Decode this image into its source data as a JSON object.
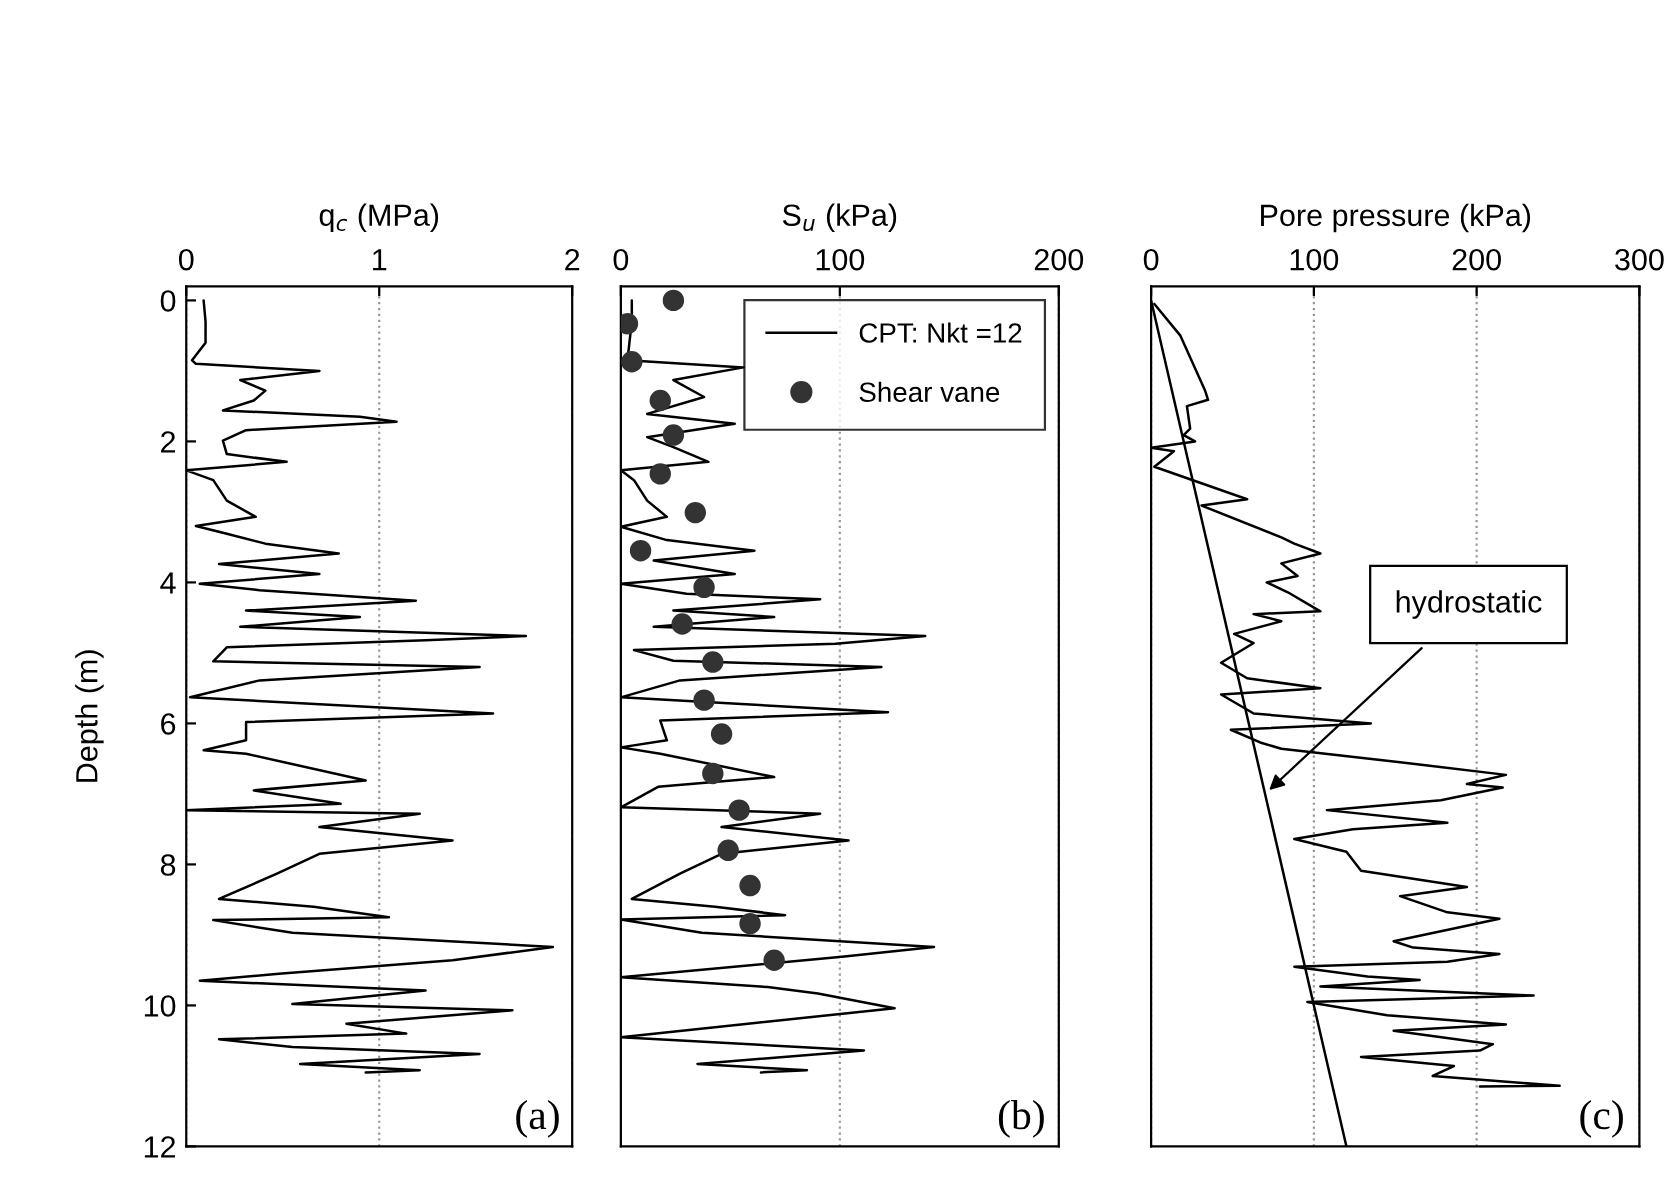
{
  "chart_data": [
    {
      "type": "line",
      "orientation": "horizontal",
      "xlabel": "q$_{c}$ (MPa)",
      "ylabel": "Depth (m)",
      "xlim": [
        0,
        2
      ],
      "xticks": [
        0,
        1,
        2
      ],
      "ylim": [
        12,
        -0.2
      ],
      "yticks": [
        0,
        2,
        4,
        6,
        8,
        10,
        12
      ],
      "grid": "x",
      "legend": false,
      "annotations": [
        "(a)"
      ],
      "series": [
        {
          "color": "#000000",
          "x": [
            0.0,
            0.3,
            0.6,
            0.85,
            0.9,
            1.0,
            1.13,
            1.28,
            1.42,
            1.56,
            1.65,
            1.72,
            1.84,
            1.99,
            2.18,
            2.29,
            2.41,
            2.55,
            2.84,
            3.07,
            3.2,
            3.31,
            3.45,
            3.59,
            3.74,
            3.88,
            4.02,
            4.11,
            4.26,
            4.4,
            4.49,
            4.63,
            4.76,
            4.82,
            4.92,
            5.12,
            5.2,
            5.39,
            5.63,
            5.86,
            5.98,
            6.24,
            6.38,
            6.43,
            6.81,
            6.95,
            7.14,
            7.23,
            7.28,
            7.47,
            7.66,
            7.85,
            8.13,
            8.49,
            8.6,
            8.75,
            8.79,
            8.97,
            9.17,
            9.36,
            9.55,
            9.65,
            9.79,
            9.98,
            10.07,
            10.26,
            10.4,
            10.48,
            10.59,
            10.69,
            10.83,
            10.92,
            10.95
          ],
          "values": [
            0.09,
            0.1,
            0.1,
            0.03,
            0.05,
            0.69,
            0.28,
            0.41,
            0.35,
            0.19,
            0.9,
            1.09,
            0.31,
            0.19,
            0.21,
            0.52,
            0.0,
            0.14,
            0.21,
            0.36,
            0.05,
            0.21,
            0.41,
            0.79,
            0.17,
            0.69,
            0.07,
            0.38,
            1.19,
            0.31,
            0.9,
            0.28,
            1.76,
            1.24,
            0.21,
            0.14,
            1.52,
            0.38,
            0.02,
            1.59,
            0.31,
            0.31,
            0.09,
            0.31,
            0.93,
            0.35,
            0.8,
            0.0,
            1.21,
            0.69,
            1.38,
            0.69,
            0.47,
            0.17,
            0.66,
            1.05,
            0.14,
            0.55,
            1.9,
            1.38,
            0.48,
            0.07,
            1.24,
            0.55,
            1.69,
            0.83,
            1.14,
            0.17,
            0.55,
            1.52,
            0.59,
            1.21,
            0.93
          ]
        }
      ]
    },
    {
      "type": "line",
      "orientation": "horizontal",
      "xlabel": "S$_{u}$ (kPa)",
      "xlim": [
        0,
        200
      ],
      "xticks": [
        0,
        100,
        200
      ],
      "ylim": [
        12,
        -0.2
      ],
      "tick_labels": "x",
      "grid": "x",
      "legend": "top right",
      "annotations": [
        "(b)"
      ],
      "series": [
        {
          "name": "CPT: Nkt =12",
          "color": "#000000",
          "x": [
            0.0,
            0.3,
            0.85,
            0.95,
            1.13,
            1.37,
            1.61,
            1.75,
            1.94,
            2.08,
            2.29,
            2.41,
            2.55,
            2.84,
            3.07,
            3.21,
            3.4,
            3.55,
            3.69,
            3.88,
            4.02,
            4.16,
            4.24,
            4.4,
            4.49,
            4.63,
            4.76,
            4.87,
            4.96,
            5.11,
            5.2,
            5.39,
            5.63,
            5.84,
            5.96,
            6.24,
            6.34,
            6.43,
            6.76,
            6.9,
            7.19,
            7.28,
            7.47,
            7.66,
            7.85,
            8.13,
            8.49,
            8.6,
            8.72,
            8.78,
            8.97,
            9.17,
            9.31,
            9.6,
            9.74,
            9.83,
            10.04,
            10.26,
            10.45,
            10.64,
            10.83,
            10.92,
            10.95
          ],
          "values": [
            5,
            5,
            3,
            56,
            24,
            38,
            12,
            52,
            12,
            24,
            40,
            0,
            6,
            12,
            21,
            0,
            21,
            61,
            15,
            52,
            0,
            30,
            91,
            24,
            70,
            15,
            139,
            98,
            6,
            24,
            119,
            27,
            0,
            122,
            18,
            21,
            0,
            18,
            70,
            17,
            0,
            91,
            46,
            104,
            46,
            27,
            5,
            43,
            75,
            0,
            37,
            143,
            101,
            0,
            67,
            90,
            125,
            58,
            0,
            111,
            35,
            85,
            64
          ]
        },
        {
          "name": "Shear vane",
          "type": "scatter",
          "marker": "circle",
          "color": "#333333",
          "x": [
            0.0,
            0.33,
            0.87,
            1.42,
            1.91,
            2.46,
            3.01,
            3.55,
            4.07,
            4.59,
            5.13,
            5.67,
            6.15,
            6.71,
            7.23,
            7.8,
            8.3,
            8.84,
            9.36
          ],
          "values": [
            24,
            3,
            5,
            18,
            24,
            18,
            34,
            9,
            38,
            28,
            42,
            38,
            46,
            42,
            54,
            49,
            59,
            59,
            70
          ]
        }
      ]
    },
    {
      "type": "line",
      "orientation": "horizontal",
      "xlabel": "Pore pressure (kPa)",
      "xlim": [
        0,
        300
      ],
      "xticks": [
        0,
        100,
        200,
        300
      ],
      "ylim": [
        12,
        -0.2
      ],
      "tick_labels": "x",
      "grid": "x",
      "legend": false,
      "annotations": [
        {
          "text": "hydrostatic",
          "x": 70,
          "y": 7.0
        },
        "(c)"
      ],
      "series": [
        {
          "color": "#000000",
          "x": [
            0.05,
            0.5,
            1.27,
            1.41,
            1.5,
            1.82,
            1.91,
            2.0,
            2.09,
            2.14,
            2.36,
            2.82,
            2.91,
            3.36,
            3.45,
            3.59,
            3.73,
            3.91,
            4.0,
            4.14,
            4.41,
            4.45,
            4.55,
            4.73,
            4.86,
            5.14,
            5.36,
            5.5,
            5.59,
            5.86,
            6.0,
            6.09,
            6.27,
            6.36,
            6.55,
            6.73,
            6.86,
            6.91,
            7.09,
            7.23,
            7.41,
            7.5,
            7.64,
            7.82,
            8.09,
            8.32,
            8.45,
            8.68,
            8.77,
            8.91,
            9.09,
            9.18,
            9.27,
            9.38,
            9.45,
            9.59,
            9.64,
            9.73,
            9.86,
            9.95,
            10.14,
            10.27,
            10.36,
            10.55,
            10.64,
            10.73,
            10.86,
            11.0,
            11.14,
            11.15
          ],
          "values": [
            2,
            18,
            33,
            35,
            22,
            24,
            20,
            27,
            0,
            14,
            2,
            59,
            31,
            80,
            88,
            104,
            80,
            90,
            71,
            84,
            104,
            63,
            80,
            51,
            63,
            43,
            59,
            104,
            43,
            63,
            135,
            49,
            67,
            80,
            153,
            218,
            194,
            216,
            178,
            108,
            182,
            124,
            88,
            120,
            129,
            194,
            153,
            182,
            214,
            186,
            149,
            161,
            214,
            182,
            88,
            133,
            165,
            104,
            235,
            96,
            145,
            218,
            149,
            210,
            202,
            129,
            186,
            173,
            251,
            202
          ]
        },
        {
          "color": "#000000",
          "x": [
            0,
            12
          ],
          "values": [
            0,
            120
          ]
        }
      ]
    }
  ]
}
